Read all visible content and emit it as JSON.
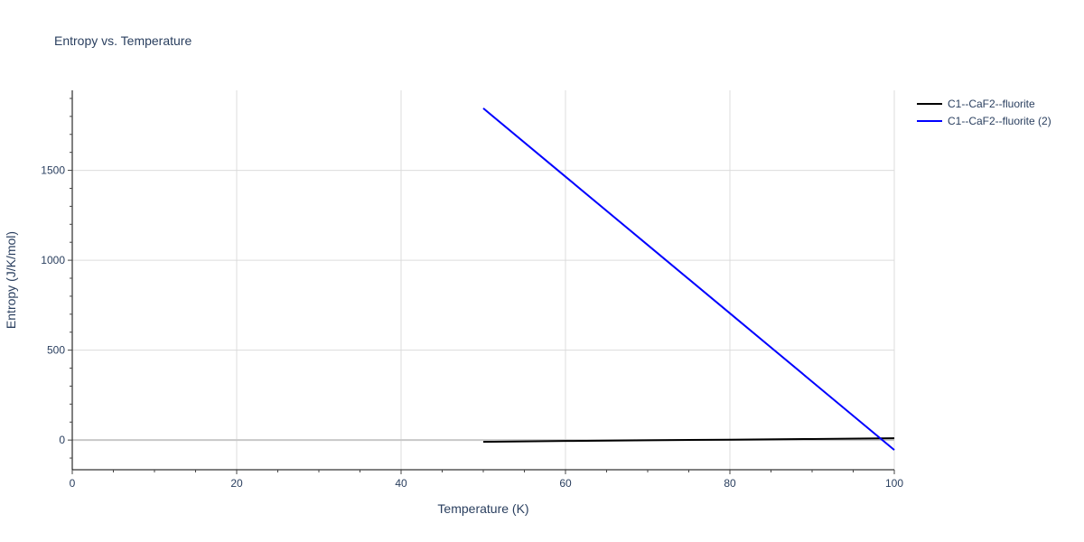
{
  "chart_data": {
    "type": "line",
    "title": "Entropy vs. Temperature",
    "xlabel": "Temperature (K)",
    "ylabel": "Entropy (J/K/mol)",
    "xlim": [
      0,
      100
    ],
    "ylim": [
      -165,
      1945
    ],
    "xticks": [
      0,
      20,
      40,
      60,
      80,
      100
    ],
    "yticks": [
      0,
      500,
      1000,
      1500
    ],
    "grid": true,
    "legend_position": "top-right",
    "series": [
      {
        "name": "C1--CaF2--fluorite",
        "color": "#000000",
        "x": [
          50,
          60,
          70,
          80,
          90,
          100
        ],
        "y": [
          -10,
          -5,
          -1,
          2,
          6,
          10
        ]
      },
      {
        "name": "C1--CaF2--fluorite (2)",
        "color": "#0000ff",
        "x": [
          50,
          60,
          70,
          80,
          90,
          100
        ],
        "y": [
          1845,
          1465,
          1085,
          705,
          325,
          -55
        ]
      }
    ]
  }
}
